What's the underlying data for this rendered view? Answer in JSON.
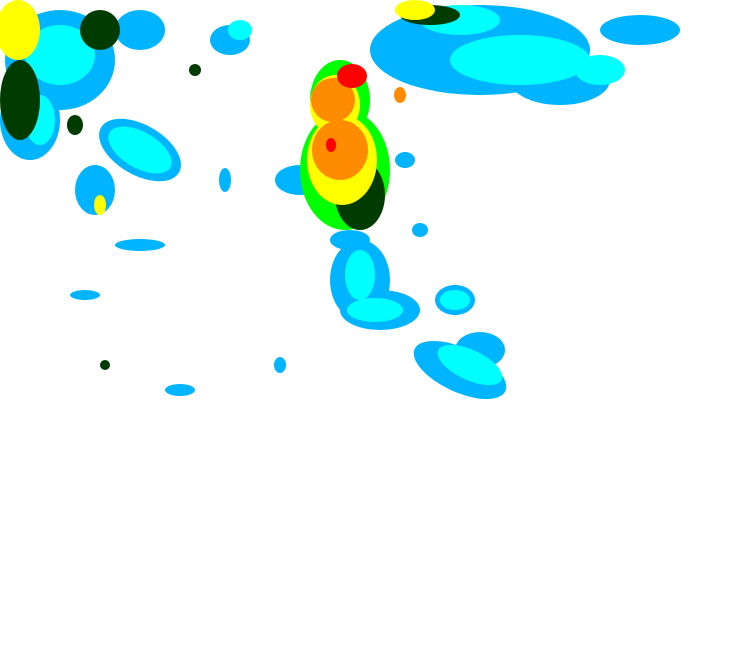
{
  "map": {
    "type": "radar-reflectivity",
    "palette": {
      "light": "#00b4ff",
      "light_moderate": "#00ffff",
      "moderate": "#00ff00",
      "moderate_heavy": "#003c00",
      "heavy": "#ffff00",
      "very_heavy": "#ff8c00",
      "extreme": "#ff0000"
    }
  }
}
